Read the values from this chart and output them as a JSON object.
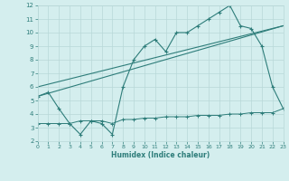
{
  "line1_x": [
    0,
    1,
    2,
    3,
    4,
    5,
    6,
    7,
    8,
    9,
    10,
    11,
    12,
    13,
    14,
    15,
    16,
    17,
    18,
    19,
    20,
    21,
    22,
    23
  ],
  "line1_y": [
    5.3,
    5.6,
    4.4,
    3.3,
    2.5,
    3.5,
    3.3,
    2.5,
    6.0,
    8.0,
    9.0,
    9.5,
    8.6,
    10.0,
    10.0,
    10.5,
    11.0,
    11.5,
    12.0,
    10.5,
    10.3,
    9.0,
    6.0,
    4.4
  ],
  "line2_x": [
    0,
    23
  ],
  "line2_y": [
    5.3,
    10.5
  ],
  "line3_x": [
    0,
    1,
    2,
    3,
    4,
    5,
    6,
    7,
    8,
    9,
    10,
    11,
    12,
    13,
    14,
    15,
    16,
    17,
    18,
    19,
    20,
    21,
    22,
    23
  ],
  "line3_y": [
    3.3,
    3.3,
    3.3,
    3.3,
    3.5,
    3.5,
    3.5,
    3.3,
    3.6,
    3.6,
    3.7,
    3.7,
    3.8,
    3.8,
    3.8,
    3.9,
    3.9,
    3.9,
    4.0,
    4.0,
    4.1,
    4.1,
    4.1,
    4.4
  ],
  "line4_x": [
    0,
    23
  ],
  "line4_y": [
    6.0,
    10.5
  ],
  "color": "#2e7d7a",
  "bg_color": "#d4eeee",
  "grid_color": "#b8d8d8",
  "xlabel": "Humidex (Indice chaleur)",
  "xlim": [
    0,
    23
  ],
  "ylim": [
    2,
    12
  ],
  "xticks": [
    0,
    1,
    2,
    3,
    4,
    5,
    6,
    7,
    8,
    9,
    10,
    11,
    12,
    13,
    14,
    15,
    16,
    17,
    18,
    19,
    20,
    21,
    22,
    23
  ],
  "yticks": [
    2,
    3,
    4,
    5,
    6,
    7,
    8,
    9,
    10,
    11,
    12
  ]
}
